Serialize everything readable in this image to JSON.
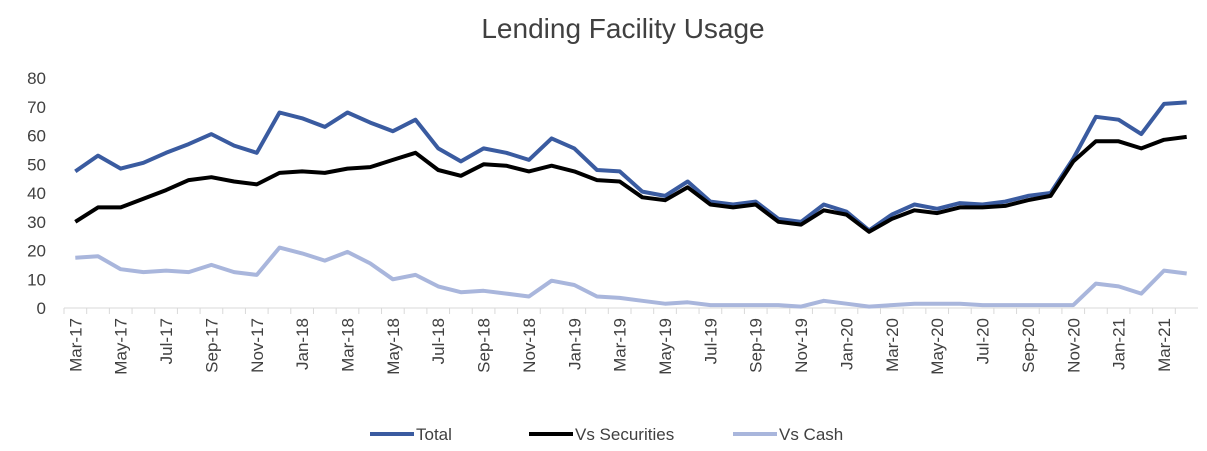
{
  "chart_data": {
    "type": "line",
    "title": "Lending Facility Usage",
    "categories": [
      "Mar-17",
      null,
      "May-17",
      null,
      "Jul-17",
      null,
      "Sep-17",
      null,
      "Nov-17",
      null,
      "Jan-18",
      null,
      "Mar-18",
      null,
      "May-18",
      null,
      "Jul-18",
      null,
      "Sep-18",
      null,
      "Nov-18",
      null,
      "Jan-19",
      null,
      "Mar-19",
      null,
      "May-19",
      null,
      "Jul-19",
      null,
      "Sep-19",
      null,
      "Nov-19",
      null,
      "Jan-20",
      null,
      "Mar-20",
      null,
      "May-20",
      null,
      "Jul-20",
      null,
      "Sep-20",
      null,
      "Nov-20",
      null,
      "Jan-21",
      null,
      "Mar-21",
      null
    ],
    "series": [
      {
        "name": "Total",
        "color": "#3a5ba0",
        "values": [
          47.5,
          53,
          48.5,
          50.5,
          54,
          57,
          60.5,
          56.5,
          54,
          68,
          66,
          63,
          68,
          64.5,
          61.5,
          65.5,
          55.5,
          51,
          55.5,
          54,
          51.5,
          59,
          55.5,
          48,
          47.5,
          40.5,
          39,
          44,
          37,
          36,
          37,
          31,
          30,
          36,
          33.5,
          27,
          32.5,
          36,
          34.5,
          36.5,
          36,
          37,
          39,
          40,
          52,
          66.5,
          65.5,
          60.5,
          71,
          71.5
        ]
      },
      {
        "name": "Vs Securities",
        "color": "#000000",
        "values": [
          30,
          35,
          35,
          38,
          41,
          44.5,
          45.5,
          44,
          43,
          47,
          47.5,
          47,
          48.5,
          49,
          51.5,
          54,
          48,
          46,
          50,
          49.5,
          47.5,
          49.5,
          47.5,
          44.5,
          44,
          38.5,
          37.5,
          42,
          36,
          35,
          36,
          30,
          29,
          34,
          32.5,
          26.5,
          31,
          34,
          33,
          35,
          35,
          35.5,
          37.5,
          39,
          51,
          58,
          58,
          55.5,
          58.5,
          59.5
        ]
      },
      {
        "name": "Vs Cash",
        "color": "#a9b6dc",
        "values": [
          17.5,
          18,
          13.5,
          12.5,
          13,
          12.5,
          15,
          12.5,
          11.5,
          21,
          19,
          16.5,
          19.5,
          15.5,
          10,
          11.5,
          7.5,
          5.5,
          6,
          5,
          4,
          9.5,
          8,
          4,
          3.5,
          2.5,
          1.5,
          2,
          1,
          1,
          1,
          1,
          0.5,
          2.5,
          1.5,
          0.5,
          1,
          1.5,
          1.5,
          1.5,
          1,
          1,
          1,
          1,
          1,
          8.5,
          7.5,
          5,
          13,
          12
        ]
      }
    ],
    "ylim": [
      0,
      80
    ],
    "yticks": [
      0,
      10,
      20,
      30,
      40,
      50,
      60,
      70,
      80
    ],
    "legend": "bottom"
  }
}
